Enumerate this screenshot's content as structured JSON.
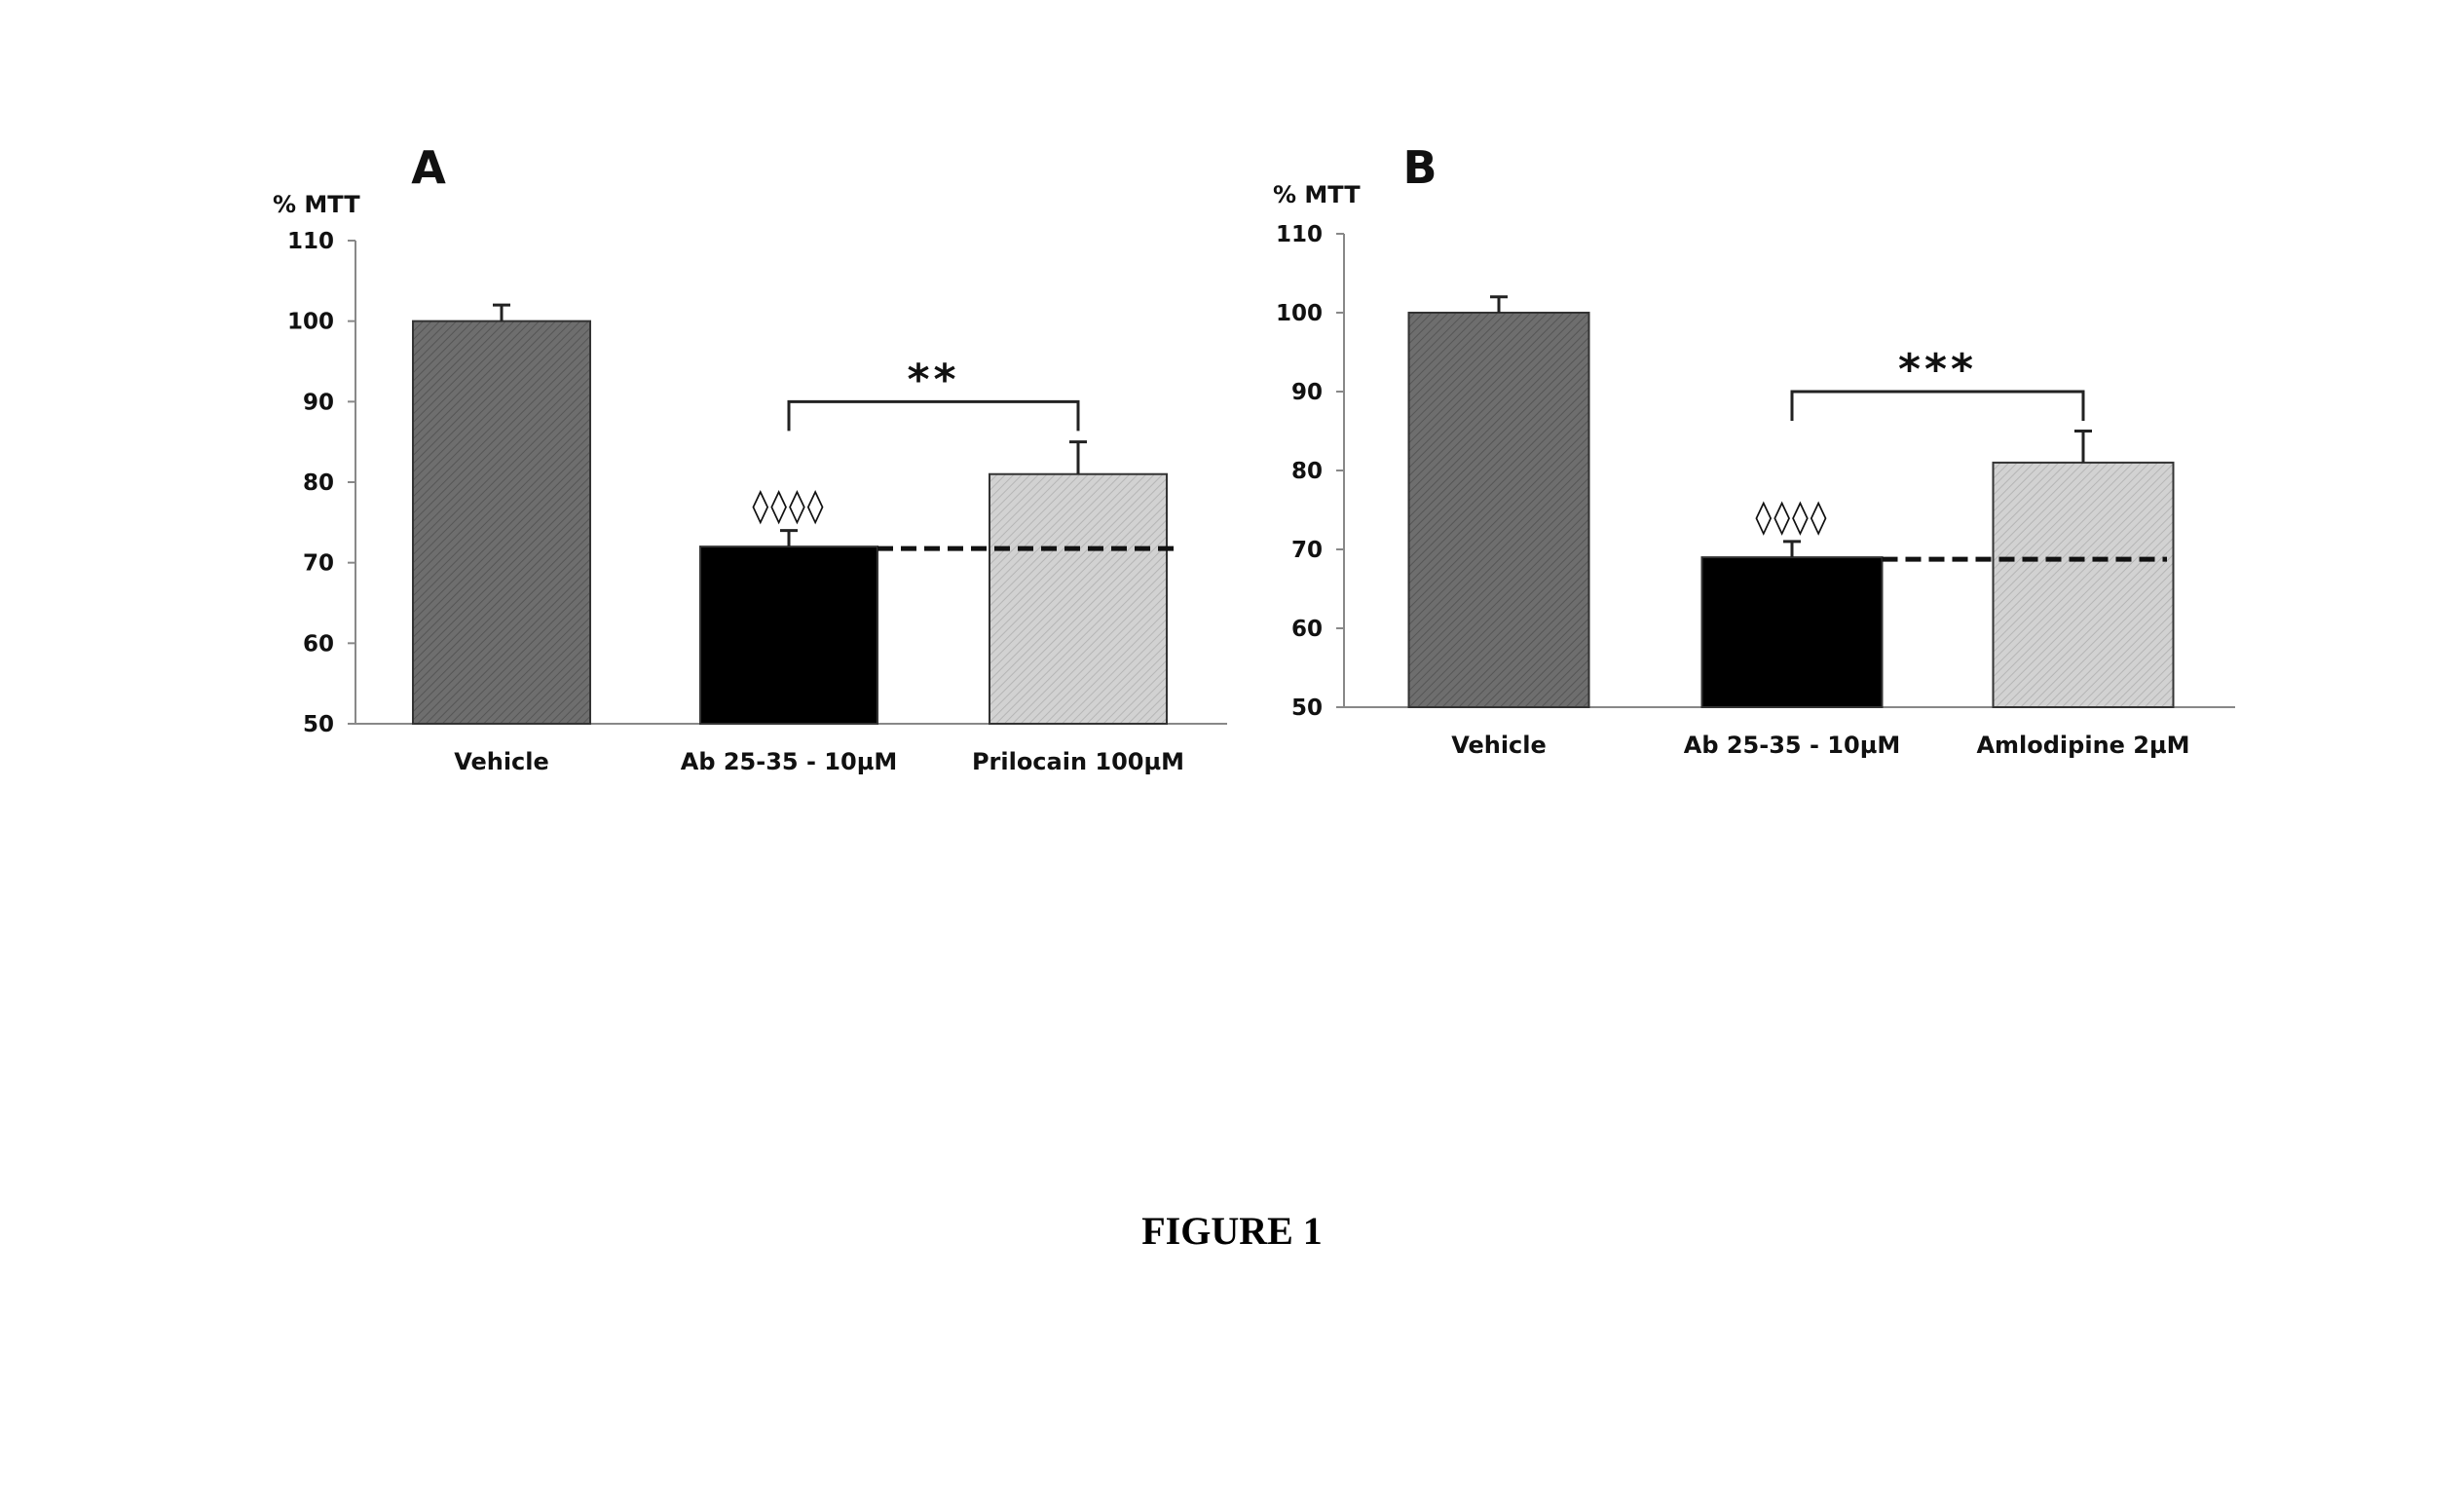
{
  "caption": "FIGURE 1",
  "colors": {
    "vehicle": "#6e6e6e",
    "ab": "#000000",
    "treatment": "#cfcfcf",
    "axis": "#888888"
  },
  "chart_data": [
    {
      "type": "bar",
      "panel": "A",
      "ylabel": "% MTT",
      "ylim": [
        50,
        110
      ],
      "yticks": [
        50,
        60,
        70,
        80,
        90,
        100,
        110
      ],
      "categories": [
        "Vehicle",
        "Ab 25-35 - 10µM",
        "Prilocain 100µM"
      ],
      "values": [
        100,
        72,
        81
      ],
      "errors": [
        2,
        2,
        4
      ],
      "markers": [
        "",
        "◊◊◊◊",
        ""
      ],
      "reference_line": 72,
      "significance": {
        "from": 1,
        "to": 2,
        "label": "**",
        "y": 90
      }
    },
    {
      "type": "bar",
      "panel": "B",
      "ylabel": "% MTT",
      "ylim": [
        50,
        110
      ],
      "yticks": [
        50,
        60,
        70,
        80,
        90,
        100,
        110
      ],
      "categories": [
        "Vehicle",
        "Ab 25-35 - 10µM",
        "Amlodipine 2µM"
      ],
      "values": [
        100,
        69,
        81
      ],
      "errors": [
        2,
        2,
        4
      ],
      "markers": [
        "",
        "◊◊◊◊",
        ""
      ],
      "reference_line": 69,
      "significance": {
        "from": 1,
        "to": 2,
        "label": "***",
        "y": 90
      }
    }
  ]
}
